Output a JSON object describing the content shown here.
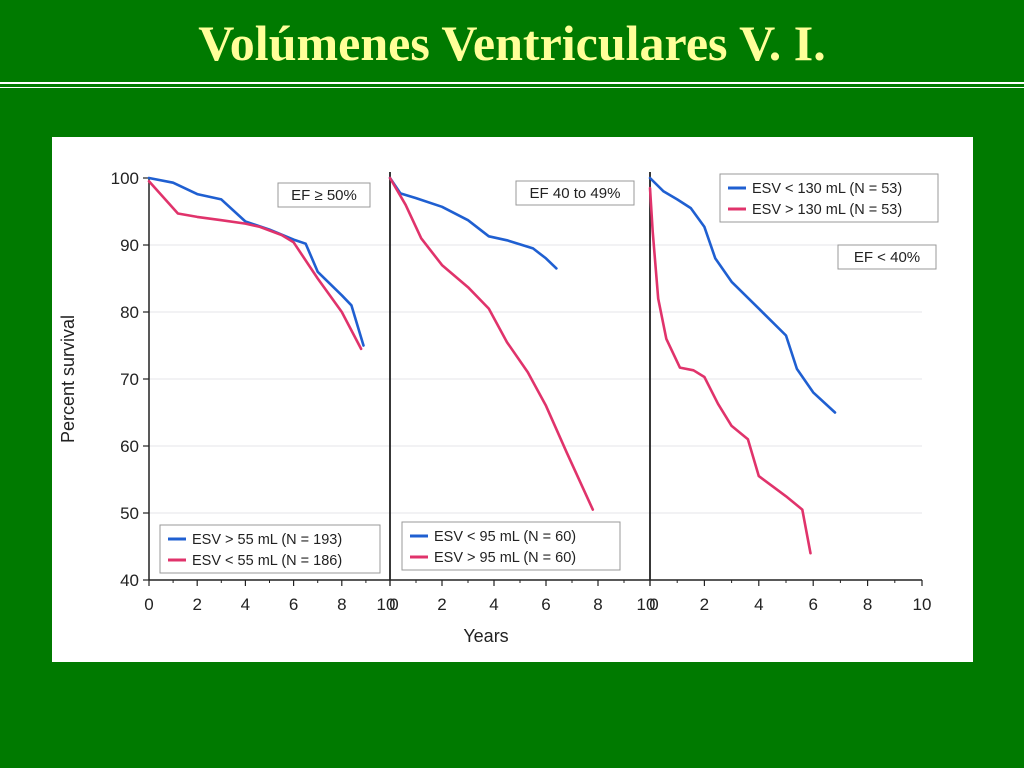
{
  "slide": {
    "title": "Volúmenes Ventriculares V. I."
  },
  "colors": {
    "background": "#007a00",
    "title": "#ffff99",
    "blue_series": "#1f5fd1",
    "red_series": "#e0336b"
  },
  "chart_data": {
    "type": "line",
    "ylabel": "Percent survival",
    "xlabel": "Years",
    "ylim": [
      40,
      100
    ],
    "y_ticks": [
      "40",
      "50",
      "60",
      "70",
      "80",
      "90",
      "100"
    ],
    "panels": [
      {
        "label": "EF ≥ 50%",
        "label_position": "top-right",
        "legend_position": "bottom-right",
        "xlim": [
          0,
          10
        ],
        "x_ticks": [
          "0",
          "2",
          "4",
          "6",
          "8",
          "10"
        ],
        "series": [
          {
            "name": "ESV > 55 mL (N = 193)",
            "color": "#1f5fd1",
            "x": [
              0,
              1,
              2,
              3,
              4,
              5,
              6,
              6.5,
              7,
              8,
              8.4,
              8.9
            ],
            "y": [
              100,
              99.3,
              97.6,
              96.8,
              93.5,
              92.3,
              90.8,
              90.2,
              86,
              82.5,
              81,
              75
            ]
          },
          {
            "name": "ESV < 55 mL (N = 186)",
            "color": "#e0336b",
            "x": [
              0,
              1.2,
              2,
              3,
              4,
              4.6,
              5.5,
              6,
              7,
              8,
              8.8
            ],
            "y": [
              99.5,
              94.7,
              94.2,
              93.7,
              93.2,
              92.7,
              91.5,
              90.4,
              85,
              80,
              74.5
            ]
          }
        ]
      },
      {
        "label": "EF 40 to 49%",
        "label_position": "top-right",
        "legend_position": "bottom-left",
        "xlim": [
          0,
          10
        ],
        "x_ticks": [
          "0",
          "2",
          "4",
          "6",
          "8",
          "10"
        ],
        "series": [
          {
            "name": "ESV < 95 mL (N = 60)",
            "color": "#1f5fd1",
            "x": [
              0,
              0.4,
              1,
              2,
              3,
              3.8,
              4.5,
              5.5,
              6,
              6.4
            ],
            "y": [
              100,
              97.7,
              97,
              95.7,
              93.7,
              91.3,
              90.7,
              89.5,
              88,
              86.5
            ]
          },
          {
            "name": "ESV > 95 mL (N = 60)",
            "color": "#e0336b",
            "x": [
              0,
              0.6,
              1.2,
              2,
              3,
              3.8,
              4.5,
              5.3,
              6,
              6.8,
              7.8
            ],
            "y": [
              100,
              96,
              91,
              87,
              83.7,
              80.5,
              75.5,
              71,
              66,
              59,
              50.5
            ]
          }
        ]
      },
      {
        "label": "EF < 40%",
        "label_position": "top-right",
        "legend_position": "top-right",
        "xlim": [
          0,
          10
        ],
        "x_ticks": [
          "0",
          "2",
          "4",
          "6",
          "8",
          "10"
        ],
        "series": [
          {
            "name": "ESV < 130 mL (N = 53)",
            "color": "#1f5fd1",
            "x": [
              0,
              0.5,
              1,
              1.5,
              2,
              2.4,
              3,
              4,
              5,
              5.4,
              6,
              6.8
            ],
            "y": [
              100,
              98,
              96.8,
              95.5,
              92.7,
              88,
              84.5,
              80.5,
              76.5,
              71.5,
              68,
              65
            ]
          },
          {
            "name": "ESV > 130 mL (N = 53)",
            "color": "#e0336b",
            "x": [
              0,
              0.1,
              0.3,
              0.6,
              1.1,
              1.6,
              2,
              2.5,
              3,
              3.6,
              4,
              4.5,
              5,
              5.6,
              5.9
            ],
            "y": [
              98.5,
              92,
              82,
              76,
              71.7,
              71.3,
              70.3,
              66.3,
              63,
              61,
              55.5,
              54,
              52.5,
              50.5,
              44
            ]
          }
        ]
      }
    ]
  }
}
